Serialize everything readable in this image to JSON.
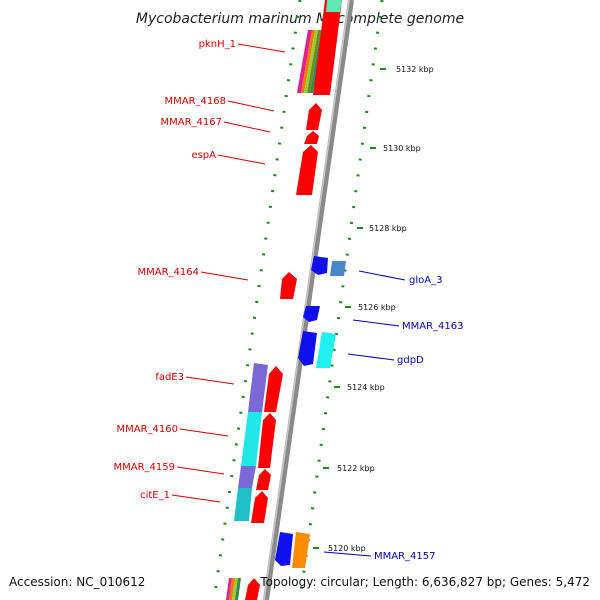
{
  "title": "Mycobacterium marinum M, complete genome",
  "footer": {
    "accession": "Accession: NC_010612",
    "summary": "Topology: circular; Length: 6,636,827 bp; Genes: 5,472"
  },
  "colors": {
    "forward_gene": "#ff0000",
    "reverse_gene": "#1010ee",
    "backbone": "#909090",
    "ticks": "#1a8a1a",
    "label_red": "#d40000",
    "label_blue": "#0000b0"
  },
  "kbp_ticks": [
    {
      "label": "5132 kbp"
    },
    {
      "label": "5130 kbp"
    },
    {
      "label": "5128 kbp"
    },
    {
      "label": "5126 kbp"
    },
    {
      "label": "5124 kbp"
    },
    {
      "label": "5122 kbp"
    },
    {
      "label": "5120 kbp"
    }
  ],
  "gene_labels_left": [
    {
      "name": "pknH_1"
    },
    {
      "name": "MMAR_4168"
    },
    {
      "name": "MMAR_4167"
    },
    {
      "name": "espA"
    },
    {
      "name": "MMAR_4164"
    },
    {
      "name": "fadE3"
    },
    {
      "name": "MMAR_4160"
    },
    {
      "name": "MMAR_4159"
    },
    {
      "name": "citE_1"
    }
  ],
  "gene_labels_right": [
    {
      "name": "gloA_3"
    },
    {
      "name": "MMAR_4163"
    },
    {
      "name": "gdpD"
    },
    {
      "name": "MMAR_4157"
    }
  ]
}
